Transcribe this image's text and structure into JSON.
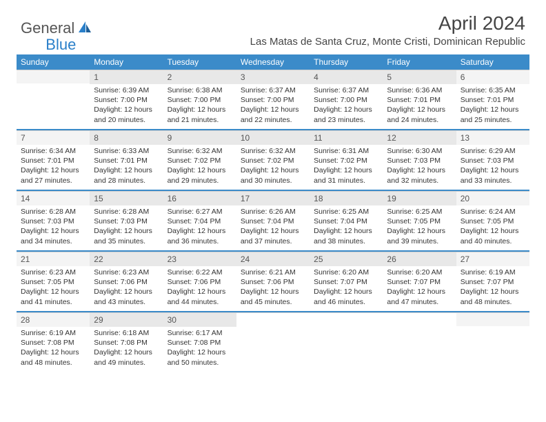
{
  "logo": {
    "general": "General",
    "blue": "Blue"
  },
  "title": "April 2024",
  "location": "Las Matas de Santa Cruz, Monte Cristi, Dominican Republic",
  "colors": {
    "header_bg": "#3b8bc9",
    "daynum_bg": "#e8e8e8",
    "daynum_weekend_bg": "#f4f4f4"
  },
  "weekdays": [
    "Sunday",
    "Monday",
    "Tuesday",
    "Wednesday",
    "Thursday",
    "Friday",
    "Saturday"
  ],
  "weeks": [
    [
      null,
      {
        "n": "1",
        "sr": "Sunrise: 6:39 AM",
        "ss": "Sunset: 7:00 PM",
        "dl": "Daylight: 12 hours and 20 minutes."
      },
      {
        "n": "2",
        "sr": "Sunrise: 6:38 AM",
        "ss": "Sunset: 7:00 PM",
        "dl": "Daylight: 12 hours and 21 minutes."
      },
      {
        "n": "3",
        "sr": "Sunrise: 6:37 AM",
        "ss": "Sunset: 7:00 PM",
        "dl": "Daylight: 12 hours and 22 minutes."
      },
      {
        "n": "4",
        "sr": "Sunrise: 6:37 AM",
        "ss": "Sunset: 7:00 PM",
        "dl": "Daylight: 12 hours and 23 minutes."
      },
      {
        "n": "5",
        "sr": "Sunrise: 6:36 AM",
        "ss": "Sunset: 7:01 PM",
        "dl": "Daylight: 12 hours and 24 minutes."
      },
      {
        "n": "6",
        "sr": "Sunrise: 6:35 AM",
        "ss": "Sunset: 7:01 PM",
        "dl": "Daylight: 12 hours and 25 minutes."
      }
    ],
    [
      {
        "n": "7",
        "sr": "Sunrise: 6:34 AM",
        "ss": "Sunset: 7:01 PM",
        "dl": "Daylight: 12 hours and 27 minutes."
      },
      {
        "n": "8",
        "sr": "Sunrise: 6:33 AM",
        "ss": "Sunset: 7:01 PM",
        "dl": "Daylight: 12 hours and 28 minutes."
      },
      {
        "n": "9",
        "sr": "Sunrise: 6:32 AM",
        "ss": "Sunset: 7:02 PM",
        "dl": "Daylight: 12 hours and 29 minutes."
      },
      {
        "n": "10",
        "sr": "Sunrise: 6:32 AM",
        "ss": "Sunset: 7:02 PM",
        "dl": "Daylight: 12 hours and 30 minutes."
      },
      {
        "n": "11",
        "sr": "Sunrise: 6:31 AM",
        "ss": "Sunset: 7:02 PM",
        "dl": "Daylight: 12 hours and 31 minutes."
      },
      {
        "n": "12",
        "sr": "Sunrise: 6:30 AM",
        "ss": "Sunset: 7:03 PM",
        "dl": "Daylight: 12 hours and 32 minutes."
      },
      {
        "n": "13",
        "sr": "Sunrise: 6:29 AM",
        "ss": "Sunset: 7:03 PM",
        "dl": "Daylight: 12 hours and 33 minutes."
      }
    ],
    [
      {
        "n": "14",
        "sr": "Sunrise: 6:28 AM",
        "ss": "Sunset: 7:03 PM",
        "dl": "Daylight: 12 hours and 34 minutes."
      },
      {
        "n": "15",
        "sr": "Sunrise: 6:28 AM",
        "ss": "Sunset: 7:03 PM",
        "dl": "Daylight: 12 hours and 35 minutes."
      },
      {
        "n": "16",
        "sr": "Sunrise: 6:27 AM",
        "ss": "Sunset: 7:04 PM",
        "dl": "Daylight: 12 hours and 36 minutes."
      },
      {
        "n": "17",
        "sr": "Sunrise: 6:26 AM",
        "ss": "Sunset: 7:04 PM",
        "dl": "Daylight: 12 hours and 37 minutes."
      },
      {
        "n": "18",
        "sr": "Sunrise: 6:25 AM",
        "ss": "Sunset: 7:04 PM",
        "dl": "Daylight: 12 hours and 38 minutes."
      },
      {
        "n": "19",
        "sr": "Sunrise: 6:25 AM",
        "ss": "Sunset: 7:05 PM",
        "dl": "Daylight: 12 hours and 39 minutes."
      },
      {
        "n": "20",
        "sr": "Sunrise: 6:24 AM",
        "ss": "Sunset: 7:05 PM",
        "dl": "Daylight: 12 hours and 40 minutes."
      }
    ],
    [
      {
        "n": "21",
        "sr": "Sunrise: 6:23 AM",
        "ss": "Sunset: 7:05 PM",
        "dl": "Daylight: 12 hours and 41 minutes."
      },
      {
        "n": "22",
        "sr": "Sunrise: 6:23 AM",
        "ss": "Sunset: 7:06 PM",
        "dl": "Daylight: 12 hours and 43 minutes."
      },
      {
        "n": "23",
        "sr": "Sunrise: 6:22 AM",
        "ss": "Sunset: 7:06 PM",
        "dl": "Daylight: 12 hours and 44 minutes."
      },
      {
        "n": "24",
        "sr": "Sunrise: 6:21 AM",
        "ss": "Sunset: 7:06 PM",
        "dl": "Daylight: 12 hours and 45 minutes."
      },
      {
        "n": "25",
        "sr": "Sunrise: 6:20 AM",
        "ss": "Sunset: 7:07 PM",
        "dl": "Daylight: 12 hours and 46 minutes."
      },
      {
        "n": "26",
        "sr": "Sunrise: 6:20 AM",
        "ss": "Sunset: 7:07 PM",
        "dl": "Daylight: 12 hours and 47 minutes."
      },
      {
        "n": "27",
        "sr": "Sunrise: 6:19 AM",
        "ss": "Sunset: 7:07 PM",
        "dl": "Daylight: 12 hours and 48 minutes."
      }
    ],
    [
      {
        "n": "28",
        "sr": "Sunrise: 6:19 AM",
        "ss": "Sunset: 7:08 PM",
        "dl": "Daylight: 12 hours and 48 minutes."
      },
      {
        "n": "29",
        "sr": "Sunrise: 6:18 AM",
        "ss": "Sunset: 7:08 PM",
        "dl": "Daylight: 12 hours and 49 minutes."
      },
      {
        "n": "30",
        "sr": "Sunrise: 6:17 AM",
        "ss": "Sunset: 7:08 PM",
        "dl": "Daylight: 12 hours and 50 minutes."
      },
      null,
      null,
      null,
      null
    ]
  ]
}
